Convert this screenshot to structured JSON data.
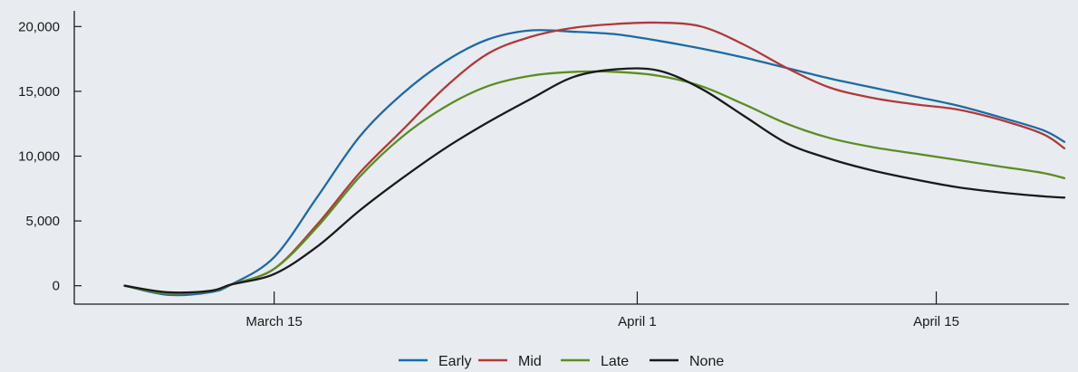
{
  "chart_data": {
    "type": "line",
    "title": "",
    "xlabel": "",
    "ylabel": "",
    "xlim": [
      "2020-03-07",
      "2020-04-21"
    ],
    "ylim": [
      -1000,
      21000
    ],
    "y_ticks": [
      0,
      5000,
      10000,
      15000,
      20000
    ],
    "y_tick_labels": [
      "0",
      "5,000",
      "10,000",
      "15,000",
      "20,000"
    ],
    "x_ticks": [
      "2020-03-15",
      "2020-04-01",
      "2020-04-15"
    ],
    "x_tick_labels": [
      "March 15",
      "April 1",
      "April 15"
    ],
    "grid": false,
    "legend_position": "bottom-center",
    "series": [
      {
        "name": "Early",
        "color": "#1f6aa5",
        "points": [
          [
            "2020-03-08",
            0
          ],
          [
            "2020-03-10",
            -700
          ],
          [
            "2020-03-12",
            -500
          ],
          [
            "2020-03-13",
            100
          ],
          [
            "2020-03-15",
            2200
          ],
          [
            "2020-03-17",
            6800
          ],
          [
            "2020-03-19",
            11500
          ],
          [
            "2020-03-21",
            14800
          ],
          [
            "2020-03-23",
            17300
          ],
          [
            "2020-03-25",
            19000
          ],
          [
            "2020-03-27",
            19700
          ],
          [
            "2020-03-29",
            19600
          ],
          [
            "2020-03-31",
            19400
          ],
          [
            "2020-04-02",
            18900
          ],
          [
            "2020-04-04",
            18300
          ],
          [
            "2020-04-06",
            17600
          ],
          [
            "2020-04-08",
            16800
          ],
          [
            "2020-04-10",
            16000
          ],
          [
            "2020-04-12",
            15300
          ],
          [
            "2020-04-14",
            14600
          ],
          [
            "2020-04-16",
            13900
          ],
          [
            "2020-04-18",
            13000
          ],
          [
            "2020-04-20",
            12000
          ],
          [
            "2020-04-21",
            11100
          ]
        ]
      },
      {
        "name": "Mid",
        "color": "#b03a3a",
        "points": [
          [
            "2020-03-08",
            0
          ],
          [
            "2020-03-10",
            -600
          ],
          [
            "2020-03-12",
            -400
          ],
          [
            "2020-03-13",
            100
          ],
          [
            "2020-03-15",
            1300
          ],
          [
            "2020-03-17",
            4700
          ],
          [
            "2020-03-19",
            8700
          ],
          [
            "2020-03-21",
            12000
          ],
          [
            "2020-03-23",
            15300
          ],
          [
            "2020-03-25",
            17900
          ],
          [
            "2020-03-27",
            19200
          ],
          [
            "2020-03-29",
            19900
          ],
          [
            "2020-03-31",
            20200
          ],
          [
            "2020-04-02",
            20300
          ],
          [
            "2020-04-04",
            20000
          ],
          [
            "2020-04-06",
            18600
          ],
          [
            "2020-04-08",
            16800
          ],
          [
            "2020-04-10",
            15300
          ],
          [
            "2020-04-12",
            14500
          ],
          [
            "2020-04-14",
            14000
          ],
          [
            "2020-04-16",
            13600
          ],
          [
            "2020-04-18",
            12800
          ],
          [
            "2020-04-20",
            11700
          ],
          [
            "2020-04-21",
            10600
          ]
        ]
      },
      {
        "name": "Late",
        "color": "#5c8d24",
        "points": [
          [
            "2020-03-08",
            0
          ],
          [
            "2020-03-10",
            -600
          ],
          [
            "2020-03-12",
            -400
          ],
          [
            "2020-03-13",
            100
          ],
          [
            "2020-03-15",
            1300
          ],
          [
            "2020-03-17",
            4500
          ],
          [
            "2020-03-19",
            8400
          ],
          [
            "2020-03-21",
            11500
          ],
          [
            "2020-03-23",
            13800
          ],
          [
            "2020-03-25",
            15400
          ],
          [
            "2020-03-27",
            16200
          ],
          [
            "2020-03-29",
            16500
          ],
          [
            "2020-03-31",
            16500
          ],
          [
            "2020-04-02",
            16200
          ],
          [
            "2020-04-04",
            15400
          ],
          [
            "2020-04-06",
            14000
          ],
          [
            "2020-04-08",
            12500
          ],
          [
            "2020-04-10",
            11400
          ],
          [
            "2020-04-12",
            10700
          ],
          [
            "2020-04-14",
            10200
          ],
          [
            "2020-04-16",
            9700
          ],
          [
            "2020-04-18",
            9200
          ],
          [
            "2020-04-20",
            8700
          ],
          [
            "2020-04-21",
            8300
          ]
        ]
      },
      {
        "name": "None",
        "color": "#1a1a1a",
        "points": [
          [
            "2020-03-08",
            0
          ],
          [
            "2020-03-10",
            -500
          ],
          [
            "2020-03-12",
            -400
          ],
          [
            "2020-03-13",
            100
          ],
          [
            "2020-03-15",
            900
          ],
          [
            "2020-03-17",
            3000
          ],
          [
            "2020-03-19",
            5800
          ],
          [
            "2020-03-21",
            8300
          ],
          [
            "2020-03-23",
            10600
          ],
          [
            "2020-03-25",
            12600
          ],
          [
            "2020-03-27",
            14400
          ],
          [
            "2020-03-29",
            16100
          ],
          [
            "2020-03-31",
            16700
          ],
          [
            "2020-04-02",
            16600
          ],
          [
            "2020-04-04",
            15200
          ],
          [
            "2020-04-06",
            13100
          ],
          [
            "2020-04-08",
            11000
          ],
          [
            "2020-04-10",
            9800
          ],
          [
            "2020-04-12",
            8900
          ],
          [
            "2020-04-14",
            8200
          ],
          [
            "2020-04-16",
            7600
          ],
          [
            "2020-04-18",
            7200
          ],
          [
            "2020-04-20",
            6900
          ],
          [
            "2020-04-21",
            6800
          ]
        ]
      }
    ]
  }
}
